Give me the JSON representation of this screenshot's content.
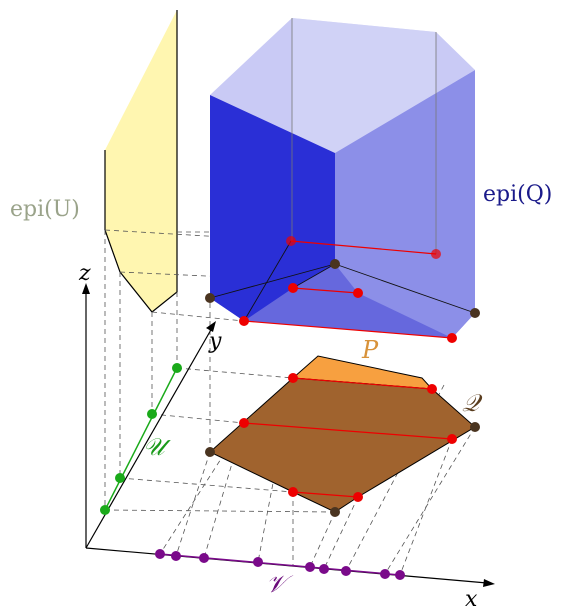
{
  "labels": {
    "epi_u": "epi(U)",
    "epi_q": "epi(Q)",
    "axis_x": "x",
    "axis_y": "y",
    "axis_z": "z",
    "set_p": "P",
    "set_q": "𝒬",
    "set_u": "𝒰",
    "set_v": "𝒱"
  },
  "colors": {
    "epi_u_fill": "#fff6b0",
    "epi_q_front": "#2a2fd6",
    "epi_q_side": "#8c8fe8",
    "epi_q_top": "#c9caf5",
    "epi_q_bottom": "#6668dd",
    "polygon_q": "#a0632e",
    "polygon_p": "#f7a040",
    "red_point": "#ee0000",
    "dark_point": "#4a3420",
    "u_point": "#1aaa1a",
    "v_point": "#7a0a8a",
    "label_epi_u": "#9aa38a",
    "label_epi_q": "#1a1a8a",
    "label_p": "#d8923a",
    "label_q": "#5a3d1e",
    "label_u": "#1a9a1a",
    "label_v": "#6a0a7a"
  }
}
